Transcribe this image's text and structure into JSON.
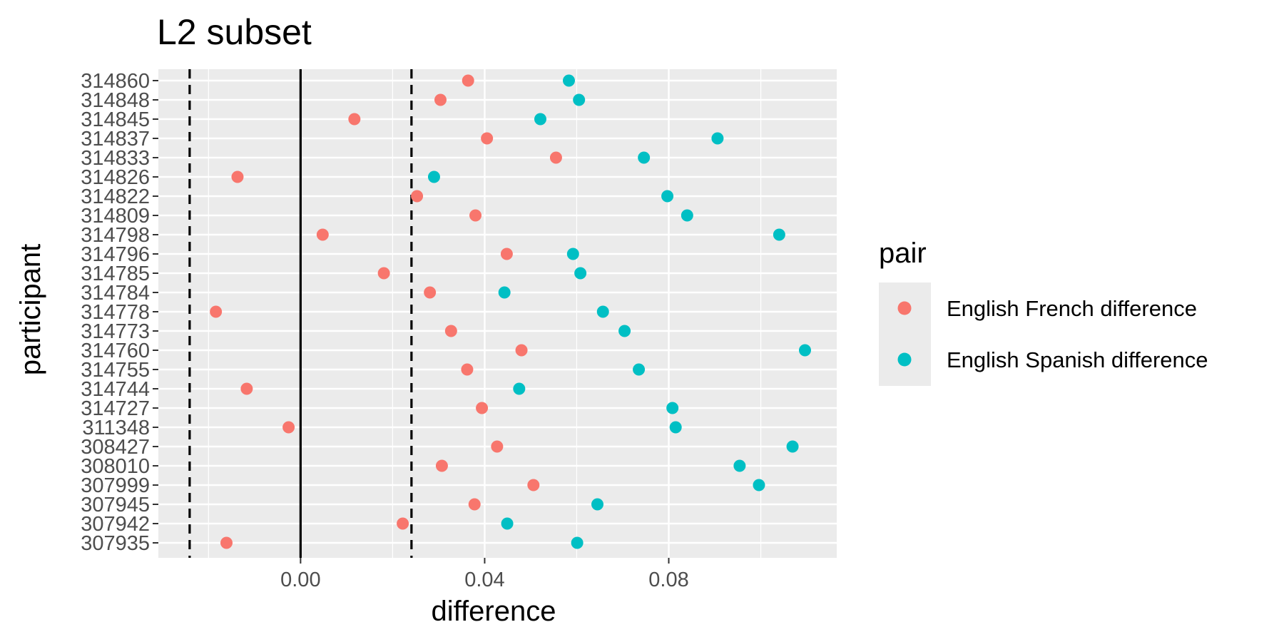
{
  "chart_data": {
    "type": "scatter",
    "title": "L2 subset",
    "xlabel": "difference",
    "ylabel": "participant",
    "xlim": [
      -0.0309,
      0.1165
    ],
    "x_ticks": [
      0.0,
      0.04,
      0.08
    ],
    "x_tick_labels": [
      "0.00",
      "0.04",
      "0.08"
    ],
    "categories": [
      "314860",
      "314848",
      "314845",
      "314837",
      "314833",
      "314826",
      "314822",
      "314809",
      "314798",
      "314796",
      "314785",
      "314784",
      "314778",
      "314773",
      "314760",
      "314755",
      "314744",
      "314727",
      "311348",
      "308427",
      "308010",
      "307999",
      "307945",
      "307942",
      "307935"
    ],
    "series": [
      {
        "name": "English French difference",
        "color": "#F8766D",
        "values": [
          0.0364,
          0.0304,
          0.0117,
          0.0405,
          0.0555,
          -0.0137,
          0.0253,
          0.038,
          0.0048,
          0.0448,
          0.0181,
          0.0281,
          -0.0184,
          0.0327,
          0.048,
          0.0362,
          -0.0117,
          0.0394,
          -0.0026,
          0.0427,
          0.0307,
          0.0506,
          0.0378,
          0.0222,
          -0.0161
        ]
      },
      {
        "name": "English Spanish difference",
        "color": "#00BFC4",
        "values": [
          0.0583,
          0.0605,
          0.0521,
          0.0906,
          0.0746,
          0.029,
          0.0797,
          0.084,
          0.104,
          0.0592,
          0.0608,
          0.0443,
          0.0657,
          0.0704,
          0.1096,
          0.0735,
          0.0475,
          0.0808,
          0.0815,
          0.1069,
          0.0954,
          0.0996,
          0.0645,
          0.0449,
          0.0601
        ]
      }
    ],
    "reference_lines": [
      {
        "x": 0.0,
        "style": "solid"
      },
      {
        "x": -0.0241,
        "style": "dashed"
      },
      {
        "x": 0.0241,
        "style": "dashed"
      }
    ],
    "panel_background": "#EBEBEB",
    "grid": true,
    "legend": {
      "title": "pair",
      "position": "right"
    }
  }
}
